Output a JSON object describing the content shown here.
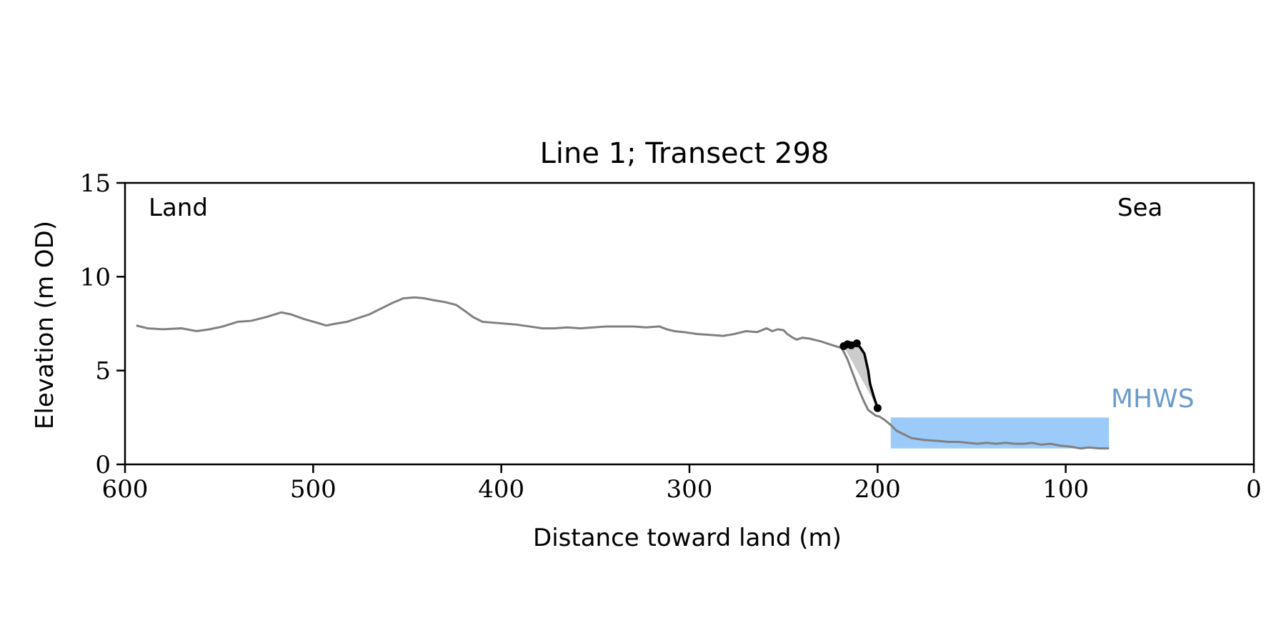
{
  "colors": {
    "profile": "#808080",
    "cliff": "#000000",
    "mhws_fill": "#9ccbfa",
    "mhws_label": "#6b9ccc",
    "cliff_fill": "#cccccc"
  },
  "chart_data": {
    "type": "line",
    "title": "Line 1; Transect 298",
    "xlabel": "Distance toward land (m)",
    "ylabel": "Elevation (m OD)",
    "xlim": [
      600,
      0
    ],
    "ylim": [
      0,
      15
    ],
    "xticks": [
      600,
      500,
      400,
      300,
      200,
      100,
      0
    ],
    "yticks": [
      0,
      5,
      10,
      15
    ],
    "grid": false,
    "annotations": {
      "land": "Land",
      "sea": "Sea",
      "mhws": "MHWS"
    },
    "mhws": {
      "elevation": 2.5,
      "x_start": 193,
      "x_end": 77
    },
    "series": [
      {
        "role": "elevation-profile",
        "x": [
          594,
          588,
          580,
          570,
          562,
          555,
          548,
          540,
          533,
          525,
          517,
          512,
          505,
          498,
          493,
          488,
          482,
          476,
          470,
          463,
          458,
          452,
          446,
          441,
          436,
          430,
          424,
          419,
          415,
          410,
          404,
          398,
          392,
          385,
          378,
          372,
          365,
          358,
          351,
          344,
          337,
          330,
          323,
          316,
          312,
          308,
          303,
          296,
          289,
          282,
          276,
          270,
          264,
          259,
          256,
          253,
          250,
          248,
          245,
          243,
          240,
          236,
          230,
          224,
          219,
          216,
          213,
          210,
          207,
          205,
          203,
          201,
          199,
          196,
          193,
          190,
          186,
          182,
          175,
          168,
          162,
          157,
          152,
          147,
          142,
          137,
          132,
          127,
          122,
          118,
          113,
          108,
          103,
          98,
          92,
          88,
          82,
          77
        ],
        "y": [
          7.4,
          7.25,
          7.2,
          7.25,
          7.1,
          7.2,
          7.35,
          7.6,
          7.65,
          7.85,
          8.1,
          8.0,
          7.75,
          7.55,
          7.4,
          7.5,
          7.6,
          7.8,
          8.0,
          8.35,
          8.6,
          8.85,
          8.9,
          8.85,
          8.75,
          8.65,
          8.5,
          8.15,
          7.85,
          7.6,
          7.55,
          7.5,
          7.45,
          7.35,
          7.25,
          7.25,
          7.3,
          7.25,
          7.3,
          7.35,
          7.35,
          7.35,
          7.3,
          7.35,
          7.2,
          7.1,
          7.05,
          6.95,
          6.9,
          6.85,
          6.95,
          7.1,
          7.05,
          7.25,
          7.1,
          7.2,
          7.15,
          6.95,
          6.75,
          6.65,
          6.75,
          6.7,
          6.55,
          6.35,
          6.2,
          5.6,
          4.8,
          4.0,
          3.3,
          2.9,
          2.75,
          2.6,
          2.55,
          2.35,
          2.1,
          1.8,
          1.6,
          1.4,
          1.3,
          1.25,
          1.2,
          1.2,
          1.15,
          1.1,
          1.15,
          1.1,
          1.15,
          1.1,
          1.1,
          1.15,
          1.05,
          1.1,
          1.0,
          0.95,
          0.85,
          0.9,
          0.85,
          0.85
        ]
      },
      {
        "role": "cliff-edge",
        "x": [
          218,
          216,
          214,
          211,
          209,
          207,
          205,
          204,
          202,
          200
        ],
        "y": [
          6.3,
          6.4,
          6.35,
          6.45,
          6.2,
          5.9,
          5.0,
          4.3,
          3.6,
          3.0
        ],
        "markers": [
          {
            "x": 218,
            "y": 6.3
          },
          {
            "x": 216,
            "y": 6.4
          },
          {
            "x": 214,
            "y": 6.35
          },
          {
            "x": 211,
            "y": 6.45
          },
          {
            "x": 200,
            "y": 3.0
          }
        ]
      }
    ]
  }
}
